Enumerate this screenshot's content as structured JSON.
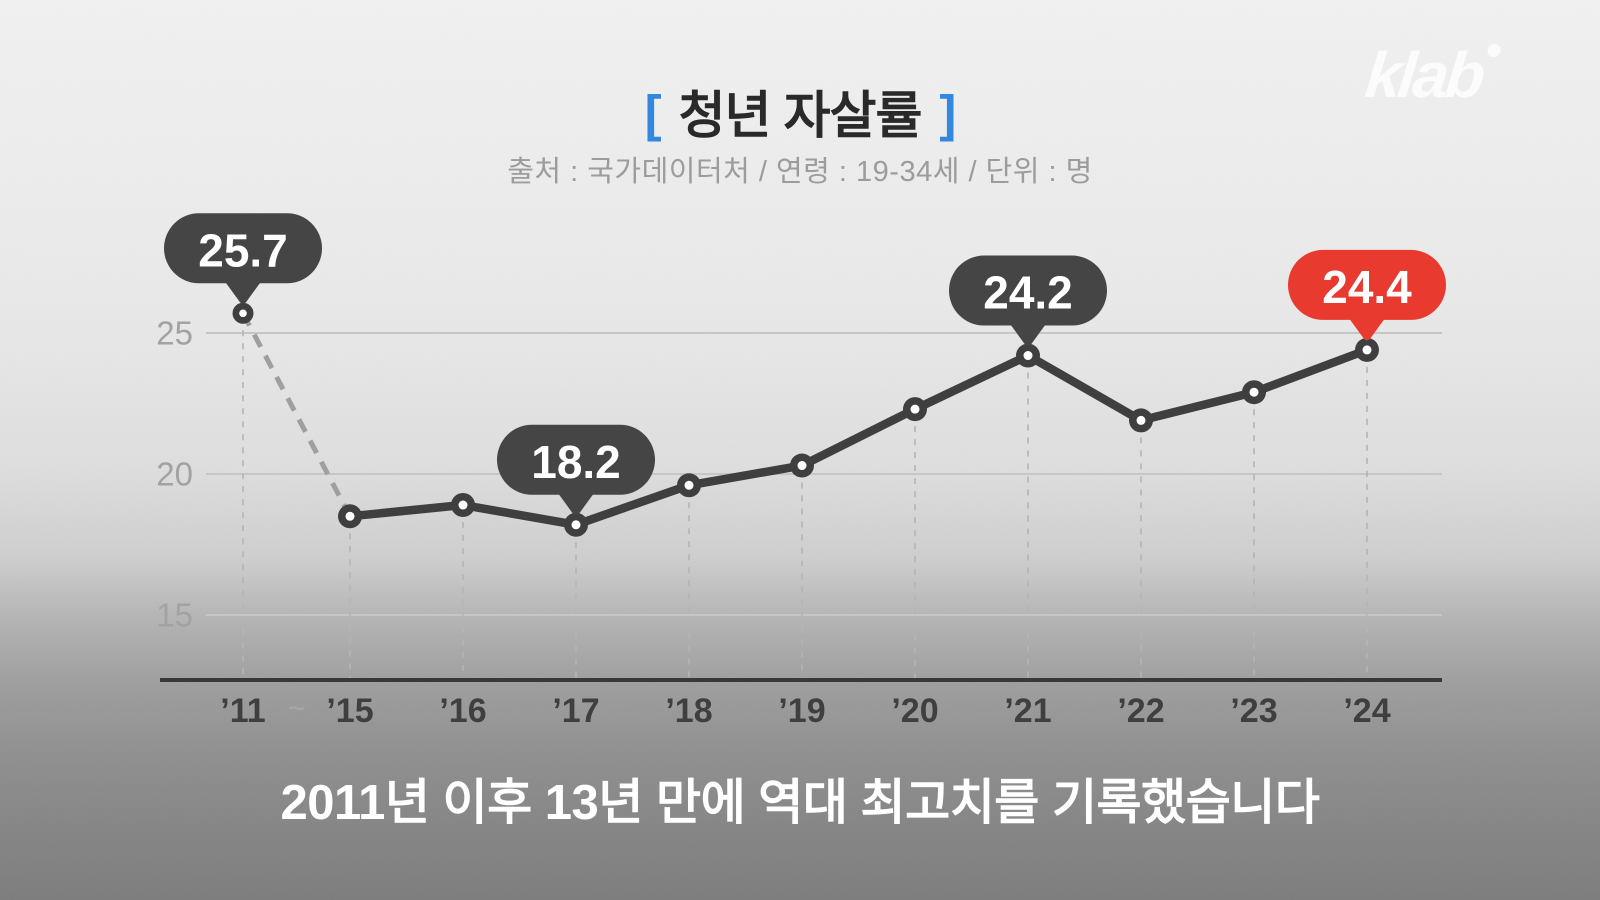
{
  "logo": {
    "text": "klab"
  },
  "header": {
    "bracket_left": "[",
    "bracket_right": "]",
    "title": "청년 자살률",
    "subtitle": "출처 : 국가데이터처 / 연령 : 19-34세 / 단위 : 명"
  },
  "colors": {
    "accent_blue": "#2f86e0",
    "highlight_red": "#e93a30",
    "line_dark": "#3f3f3f",
    "grid_gray": "#c6c6c6",
    "axis_dark": "#383838",
    "dashed_gray": "#9f9f9f",
    "tick_label_gray": "#a2a2a2",
    "x_label_dark": "#3f3f3f",
    "caption_white": "#ffffff"
  },
  "chart_data": {
    "type": "line",
    "title": "청년 자살률",
    "source_label": "출처 : 국가데이터처",
    "age_label": "연령 : 19-34세",
    "unit_label": "단위 : 명",
    "categories": [
      "’11",
      "’15",
      "’16",
      "’17",
      "’18",
      "’19",
      "’20",
      "’21",
      "’22",
      "’23",
      "’24"
    ],
    "values": [
      25.7,
      18.5,
      18.9,
      18.2,
      19.6,
      20.3,
      22.3,
      24.2,
      21.9,
      22.9,
      24.4
    ],
    "gap_marker": "~",
    "gap_between": [
      0,
      1
    ],
    "dashed_segment": [
      0,
      1
    ],
    "y_ticks": [
      25,
      20,
      15
    ],
    "ylim": [
      12.7,
      26.5
    ],
    "grid": true,
    "legend": "none",
    "callouts": [
      {
        "index": 0,
        "label": "25.7",
        "color": "#454545",
        "text_color": "#ffffff"
      },
      {
        "index": 3,
        "label": "18.2",
        "color": "#454545",
        "text_color": "#ffffff"
      },
      {
        "index": 7,
        "label": "24.2",
        "color": "#454545",
        "text_color": "#ffffff"
      },
      {
        "index": 10,
        "label": "24.4",
        "color": "#e93a30",
        "text_color": "#ffffff"
      }
    ]
  },
  "caption": {
    "text": "2011년 이후 13년 만에 역대 최고치를 기록했습니다"
  }
}
